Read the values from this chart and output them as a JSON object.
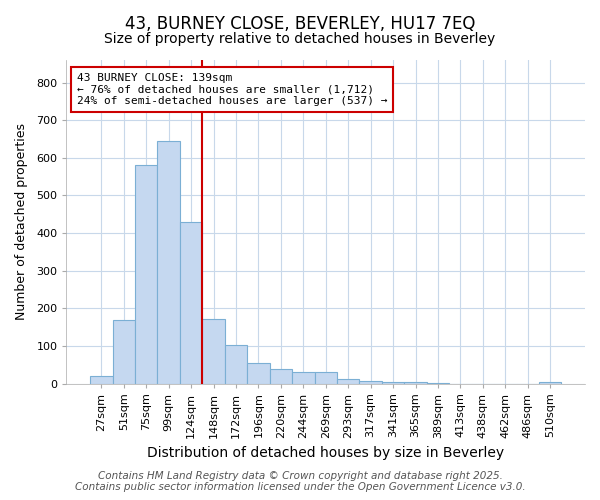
{
  "title_line1": "43, BURNEY CLOSE, BEVERLEY, HU17 7EQ",
  "title_line2": "Size of property relative to detached houses in Beverley",
  "xlabel": "Distribution of detached houses by size in Beverley",
  "ylabel": "Number of detached properties",
  "categories": [
    "27sqm",
    "51sqm",
    "75sqm",
    "99sqm",
    "124sqm",
    "148sqm",
    "172sqm",
    "196sqm",
    "220sqm",
    "244sqm",
    "269sqm",
    "293sqm",
    "317sqm",
    "341sqm",
    "365sqm",
    "389sqm",
    "413sqm",
    "438sqm",
    "462sqm",
    "486sqm",
    "510sqm"
  ],
  "values": [
    20,
    170,
    580,
    645,
    430,
    172,
    103,
    55,
    38,
    30,
    30,
    13,
    8,
    5,
    3,
    2,
    0,
    0,
    0,
    0,
    5
  ],
  "bar_color": "#c5d8f0",
  "bar_edge_color": "#7bafd4",
  "vline_color": "#cc0000",
  "annotation_text": "43 BURNEY CLOSE: 139sqm\n← 76% of detached houses are smaller (1,712)\n24% of semi-detached houses are larger (537) →",
  "box_edge_color": "#cc0000",
  "ylim": [
    0,
    860
  ],
  "yticks": [
    0,
    100,
    200,
    300,
    400,
    500,
    600,
    700,
    800
  ],
  "background_color": "#ffffff",
  "plot_bg_color": "#ffffff",
  "grid_color": "#c8d8ea",
  "footer_line1": "Contains HM Land Registry data © Crown copyright and database right 2025.",
  "footer_line2": "Contains public sector information licensed under the Open Government Licence v3.0.",
  "title_fontsize": 12,
  "subtitle_fontsize": 10,
  "annotation_fontsize": 8,
  "footer_fontsize": 7.5,
  "ylabel_fontsize": 9,
  "xlabel_fontsize": 10,
  "tick_fontsize": 8
}
